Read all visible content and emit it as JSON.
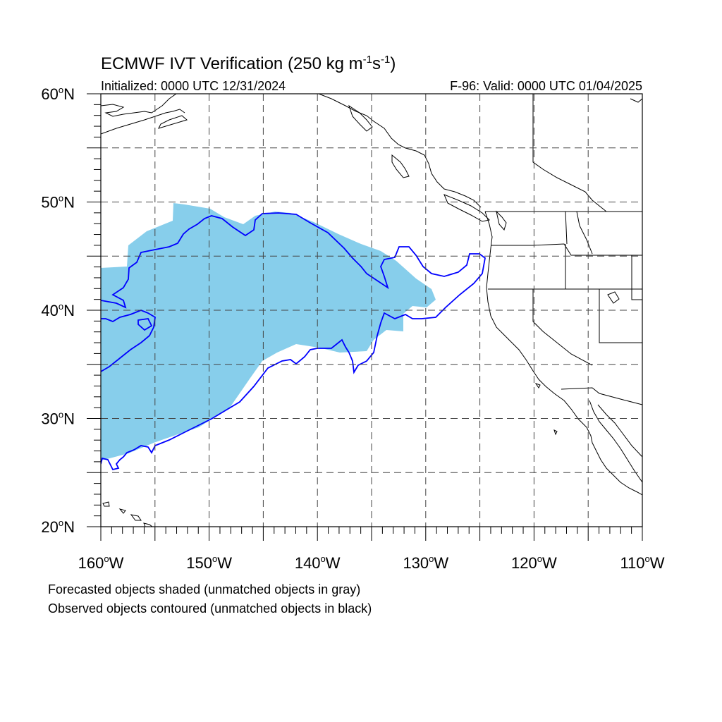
{
  "title": {
    "main": "ECMWF IVT Verification (250 kg m",
    "unit_exp1": "-1",
    "unit_mid": "s",
    "unit_exp2": "-1",
    "unit_close": ")",
    "initialized": "Initialized: 0000 UTC 12/31/2024",
    "valid": "F-96: Valid: 0000 UTC 01/04/2025"
  },
  "map": {
    "extent": {
      "lon_min": -160,
      "lon_max": -110,
      "lat_min": 20,
      "lat_max": 60
    },
    "lat_labels": [
      {
        "lat": 60,
        "text": "60",
        "hemi": "N"
      },
      {
        "lat": 50,
        "text": "50",
        "hemi": "N"
      },
      {
        "lat": 40,
        "text": "40",
        "hemi": "N"
      },
      {
        "lat": 30,
        "text": "30",
        "hemi": "N"
      },
      {
        "lat": 20,
        "text": "20",
        "hemi": "N"
      }
    ],
    "lon_labels": [
      {
        "lon": -160,
        "text": "160",
        "hemi": "W"
      },
      {
        "lon": -150,
        "text": "150",
        "hemi": "W"
      },
      {
        "lon": -140,
        "text": "140",
        "hemi": "W"
      },
      {
        "lon": -130,
        "text": "130",
        "hemi": "W"
      },
      {
        "lon": -120,
        "text": "120",
        "hemi": "W"
      },
      {
        "lon": -110,
        "text": "110",
        "hemi": "W"
      }
    ],
    "grid_lons": [
      -155,
      -150,
      -145,
      -140,
      -135,
      -130,
      -125,
      -120,
      -115
    ],
    "grid_lats": [
      25,
      30,
      35,
      40,
      45,
      50,
      55
    ],
    "forecast_fill_color": "#87ceeb",
    "observed_contour_color": "#0000ff",
    "coast_color": "#000000"
  },
  "footer": {
    "line1": "Forecasted objects shaded (unmatched objects in gray)",
    "line2": "Observed objects contoured (unmatched objects in black)"
  }
}
